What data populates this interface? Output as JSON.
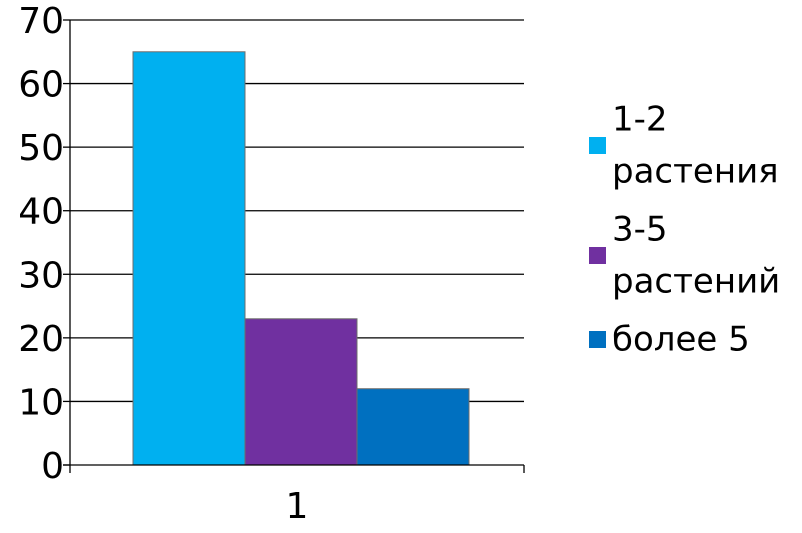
{
  "chart_data": {
    "type": "bar",
    "categories": [
      "1"
    ],
    "series": [
      {
        "name": "1-2 растения",
        "legend_lines": [
          "1-2",
          "растения"
        ],
        "values": [
          65
        ],
        "color": "#00b0f0"
      },
      {
        "name": "3-5 растений",
        "legend_lines": [
          "3-5",
          "растений"
        ],
        "values": [
          23
        ],
        "color": "#7030a0"
      },
      {
        "name": "более 5",
        "legend_lines": [
          "более 5"
        ],
        "values": [
          12
        ],
        "color": "#0070c0"
      }
    ],
    "ylim": [
      0,
      70
    ],
    "yticks": [
      0,
      10,
      20,
      30,
      40,
      50,
      60,
      70
    ],
    "grid": true,
    "legend_position": "right",
    "title": "",
    "xlabel": "",
    "ylabel": ""
  }
}
